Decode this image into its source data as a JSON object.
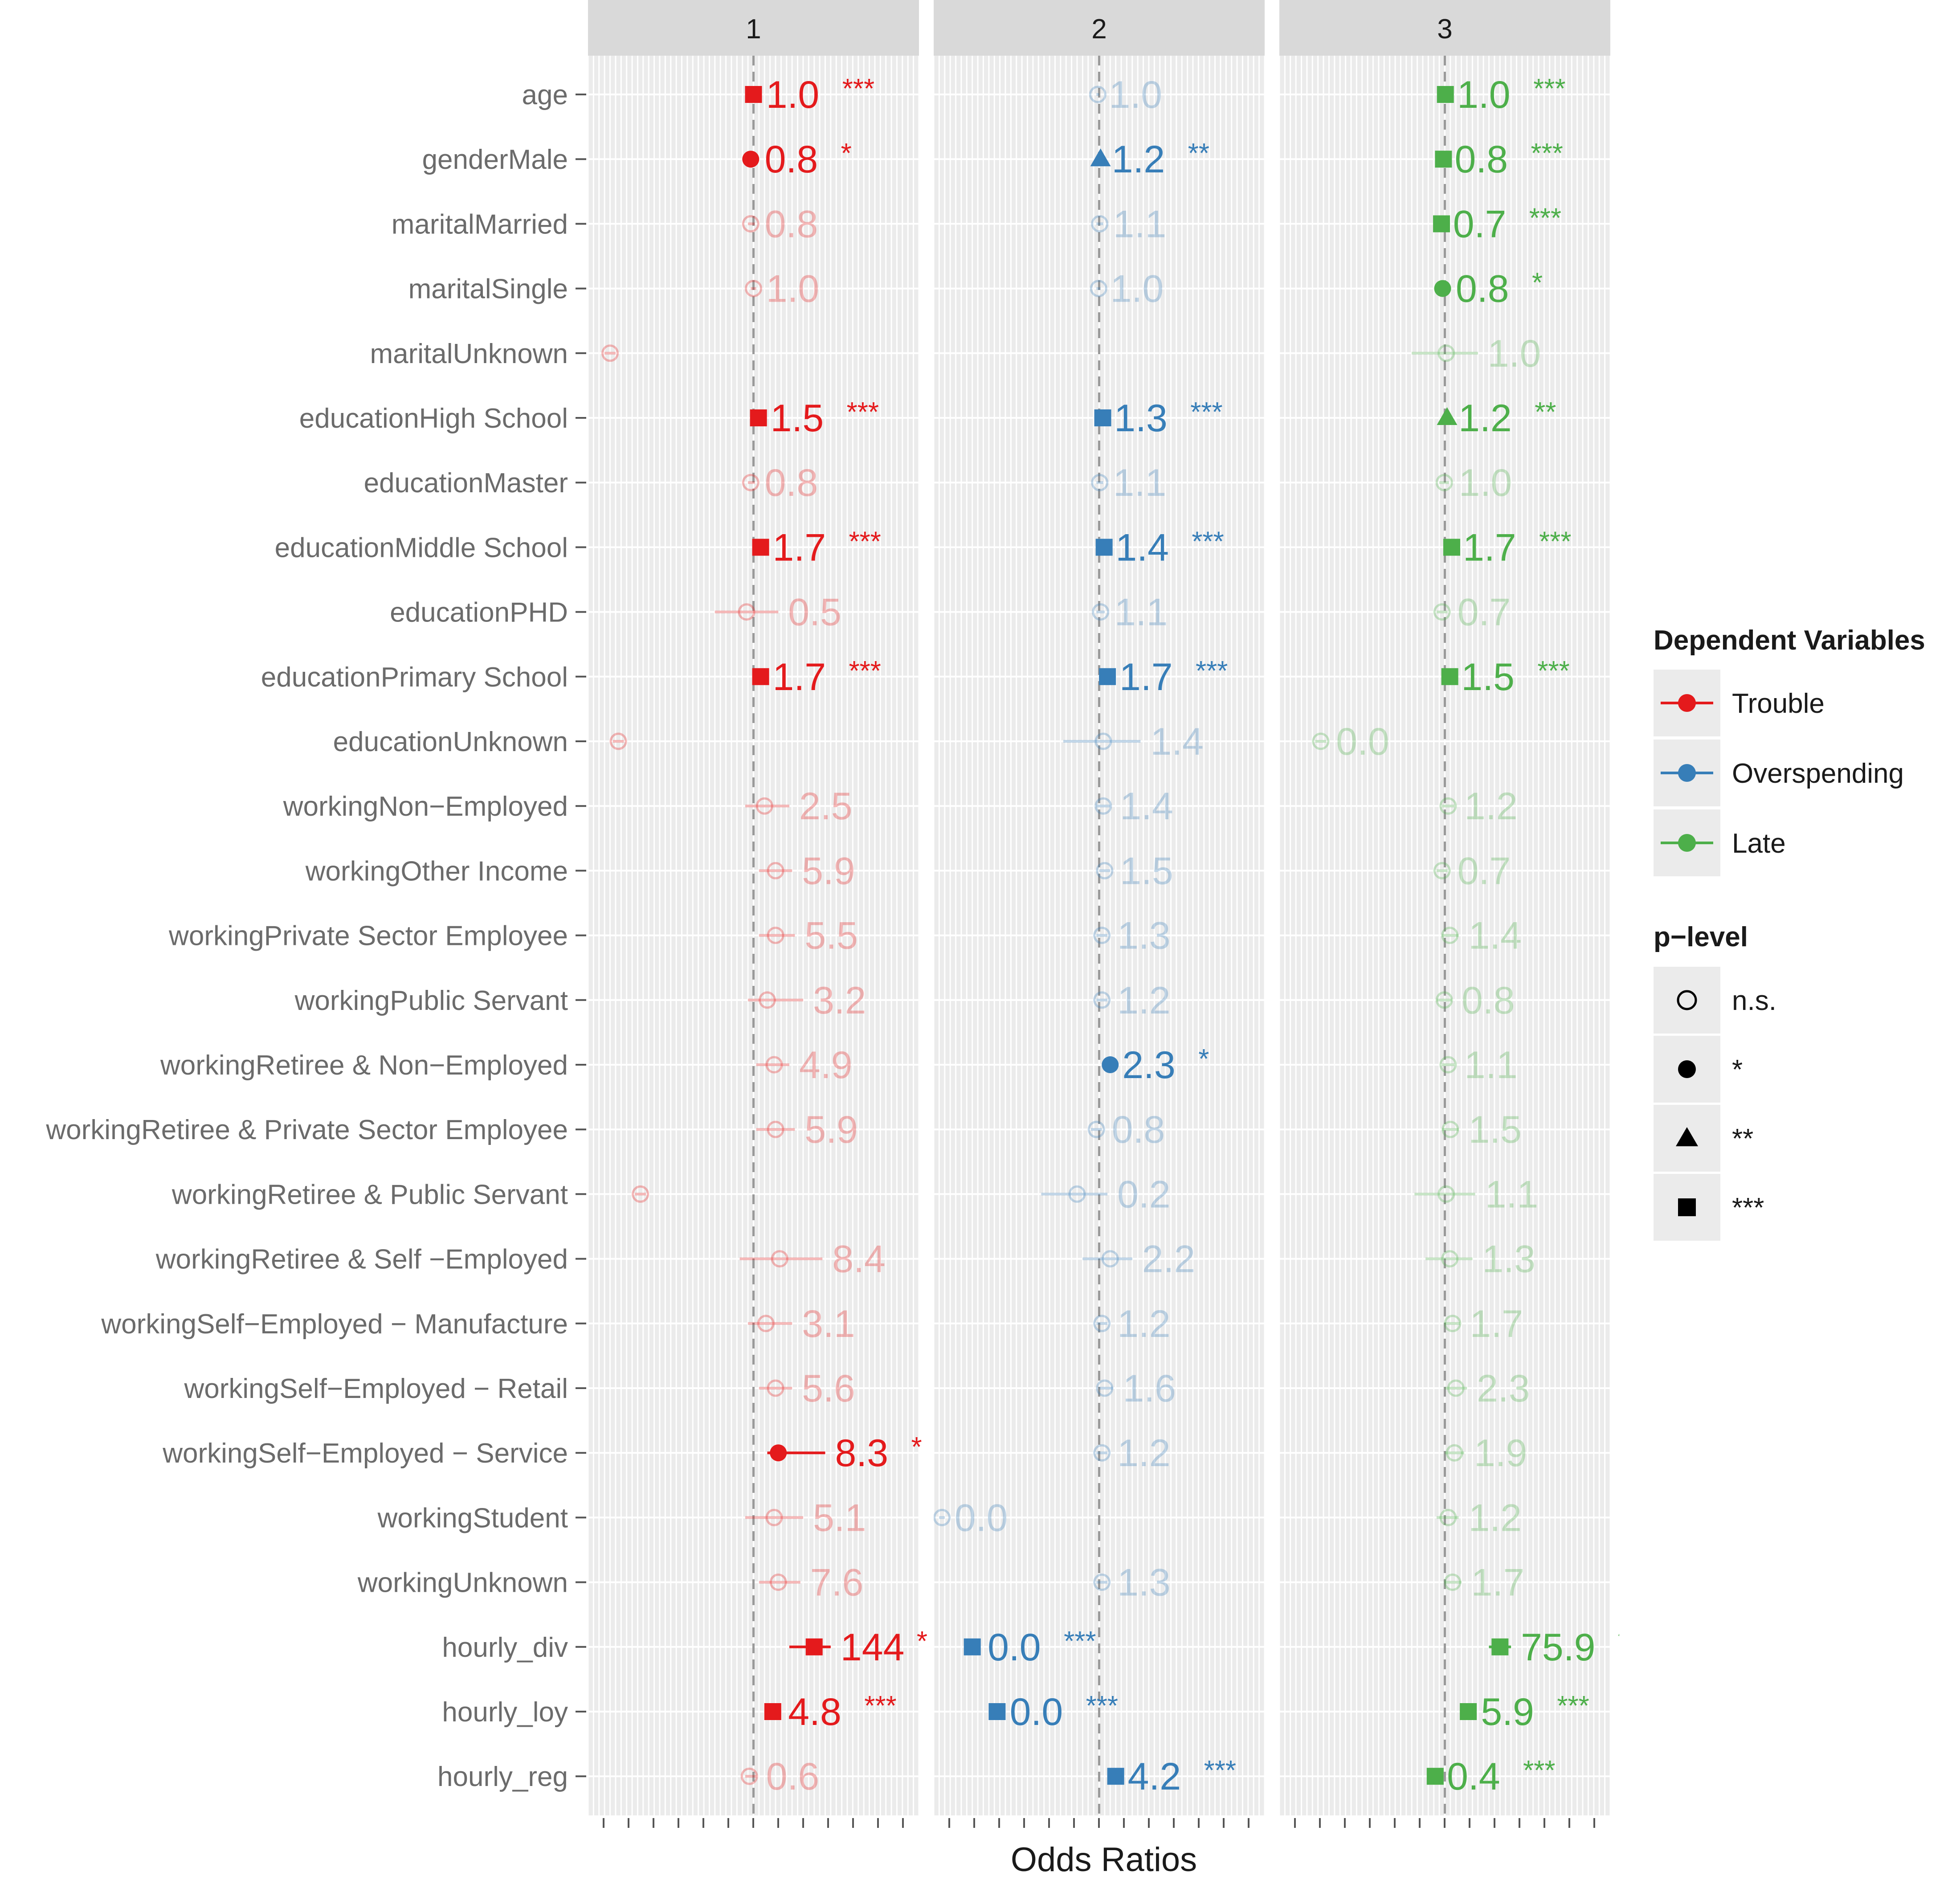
{
  "chart_data": {
    "type": "scatter",
    "title": "",
    "xlabel": "Odds Ratios",
    "ylabel": "",
    "facets": [
      "1",
      "2",
      "3"
    ],
    "colors": [
      "#E41A1C",
      "#377EB8",
      "#4DAF4A"
    ],
    "log_scale": true,
    "xlim": [
      -6,
      6
    ],
    "grid": true,
    "legend_position": "right",
    "categories": [
      "age",
      "genderMale",
      "maritalMarried",
      "maritalSingle",
      "maritalUnknown",
      "educationHigh School",
      "educationMaster",
      "educationMiddle School",
      "educationPHD",
      "educationPrimary School",
      "educationUnknown",
      "workingNon−Employed",
      "workingOther Income",
      "workingPrivate Sector Employee",
      "workingPublic Servant",
      "workingRetiree & Non−Employed",
      "workingRetiree & Private Sector Employee",
      "workingRetiree & Public Servant",
      "workingRetiree & Self −Employed",
      "workingSelf−Employed − Manufacture",
      "workingSelf−Employed − Retail",
      "workingSelf−Employed − Service",
      "workingStudent",
      "workingUnknown",
      "hourly_div",
      "hourly_loy",
      "hourly_reg"
    ],
    "series": [
      {
        "name": "Trouble",
        "x": [
          0.0,
          -0.1,
          -0.1,
          0.0,
          -5.2,
          0.18,
          -0.1,
          0.26,
          -0.25,
          0.26,
          -4.9,
          0.4,
          0.8,
          0.8,
          0.5,
          0.75,
          0.8,
          -4.1,
          0.95,
          0.45,
          0.8,
          0.9,
          0.75,
          0.9,
          2.2,
          0.7,
          -0.15
        ],
        "lo": [
          -0.1,
          -0.2,
          -0.2,
          -0.1,
          -5.4,
          0.1,
          -0.2,
          0.18,
          -1.4,
          0.18,
          -5.1,
          -0.3,
          0.2,
          0.2,
          -0.2,
          0.1,
          0.1,
          -4.3,
          -0.5,
          -0.2,
          0.2,
          0.5,
          -0.3,
          0.2,
          1.3,
          0.5,
          -0.3
        ],
        "hi": [
          0.1,
          0.05,
          0.05,
          0.1,
          -5.0,
          0.26,
          0.05,
          0.34,
          0.9,
          0.34,
          -4.7,
          1.3,
          1.4,
          1.5,
          1.8,
          1.3,
          1.5,
          -3.9,
          2.5,
          1.4,
          1.4,
          2.6,
          1.8,
          1.7,
          2.8,
          0.9,
          0.1
        ],
        "labels": [
          "1.0",
          "0.8",
          "0.8",
          "1.0",
          "",
          "1.5",
          "0.8",
          "1.7",
          "0.5",
          "1.7",
          "",
          "2.5",
          "5.9",
          "5.5",
          "3.2",
          "4.9",
          "5.9",
          "",
          "8.4",
          "3.1",
          "5.6",
          "8.3",
          "5.1",
          "7.6",
          "144",
          "4.8",
          "0.6"
        ],
        "p": [
          "***",
          "*",
          "n.s.",
          "n.s.",
          "n.s.",
          "***",
          "n.s.",
          "***",
          "n.s.",
          "***",
          "n.s.",
          "n.s.",
          "n.s.",
          "n.s.",
          "n.s.",
          "n.s.",
          "n.s.",
          "n.s.",
          "n.s.",
          "n.s.",
          "n.s.",
          "*",
          "n.s.",
          "n.s.",
          "***",
          "***",
          "n.s."
        ]
      },
      {
        "name": "Overspending",
        "x": [
          -0.05,
          0.05,
          0.02,
          -0.02,
          null,
          0.13,
          0.02,
          0.18,
          0.05,
          0.3,
          0.15,
          0.15,
          0.2,
          0.1,
          0.1,
          0.4,
          -0.1,
          -0.8,
          0.4,
          0.1,
          0.2,
          0.1,
          -5.7,
          0.1,
          -4.6,
          -3.7,
          0.6
        ],
        "lo": [
          -0.1,
          0.0,
          -0.1,
          -0.1,
          null,
          0.07,
          -0.1,
          0.12,
          -0.1,
          0.22,
          -1.3,
          -0.1,
          0.0,
          -0.1,
          -0.1,
          0.32,
          -0.3,
          -2.1,
          -0.6,
          -0.1,
          0.0,
          -0.1,
          -5.8,
          -0.1,
          -4.8,
          -3.8,
          0.52
        ],
        "hi": [
          0.0,
          0.1,
          0.15,
          0.05,
          null,
          0.19,
          0.15,
          0.24,
          0.2,
          0.38,
          1.5,
          0.4,
          0.4,
          0.3,
          0.3,
          0.48,
          0.1,
          0.3,
          1.2,
          0.3,
          0.5,
          0.3,
          -5.6,
          0.3,
          -4.4,
          -3.6,
          0.68
        ],
        "labels": [
          "1.0",
          "1.2",
          "1.1",
          "1.0",
          "",
          "1.3",
          "1.1",
          "1.4",
          "1.1",
          "1.7",
          "1.4",
          "1.4",
          "1.5",
          "1.3",
          "1.2",
          "2.3",
          "0.8",
          "0.2",
          "2.2",
          "1.2",
          "1.6",
          "1.2",
          "0.0",
          "1.3",
          "0.0",
          "0.0",
          "4.2"
        ],
        "p": [
          "n.s.",
          "**",
          "n.s.",
          "n.s.",
          "n.s.",
          "***",
          "n.s.",
          "***",
          "n.s.",
          "***",
          "n.s.",
          "n.s.",
          "n.s.",
          "n.s.",
          "n.s.",
          "*",
          "n.s.",
          "n.s.",
          "n.s.",
          "n.s.",
          "n.s.",
          "n.s.",
          "n.s.",
          "n.s.",
          "***",
          "***",
          "***"
        ]
      },
      {
        "name": "Late",
        "x": [
          0.02,
          -0.05,
          -0.12,
          -0.08,
          0.05,
          0.08,
          -0.02,
          0.25,
          -0.1,
          0.18,
          -4.5,
          0.12,
          -0.1,
          0.18,
          -0.02,
          0.12,
          0.2,
          0.05,
          0.18,
          0.28,
          0.4,
          0.35,
          0.12,
          0.28,
          2.0,
          0.85,
          -0.35
        ],
        "lo": [
          -0.05,
          -0.1,
          -0.18,
          -0.2,
          -1.2,
          0.02,
          -0.2,
          0.2,
          -0.3,
          0.12,
          -4.7,
          -0.1,
          -0.3,
          -0.1,
          -0.3,
          -0.1,
          -0.1,
          -1.1,
          -0.7,
          0.0,
          0.0,
          0.0,
          -0.3,
          0.0,
          1.6,
          0.75,
          -0.42
        ],
        "hi": [
          0.09,
          0.0,
          -0.06,
          0.04,
          1.2,
          0.14,
          0.15,
          0.3,
          0.1,
          0.24,
          -4.3,
          0.35,
          0.1,
          0.5,
          0.25,
          0.35,
          0.5,
          1.1,
          1.0,
          0.55,
          0.8,
          0.7,
          0.5,
          0.6,
          2.4,
          0.95,
          -0.28
        ],
        "labels": [
          "1.0",
          "0.8",
          "0.7",
          "0.8",
          "1.0",
          "1.2",
          "1.0",
          "1.7",
          "0.7",
          "1.5",
          "0.0",
          "1.2",
          "0.7",
          "1.4",
          "0.8",
          "1.1",
          "1.5",
          "1.1",
          "1.3",
          "1.7",
          "2.3",
          "1.9",
          "1.2",
          "1.7",
          "75.9",
          "5.9",
          "0.4"
        ],
        "p": [
          "***",
          "***",
          "***",
          "*",
          "n.s.",
          "**",
          "n.s.",
          "***",
          "n.s.",
          "***",
          "n.s.",
          "n.s.",
          "n.s.",
          "n.s.",
          "n.s.",
          "n.s.",
          "n.s.",
          "n.s.",
          "n.s.",
          "n.s.",
          "n.s.",
          "n.s.",
          "n.s.",
          "n.s.",
          "***",
          "***",
          "***"
        ]
      }
    ],
    "legend": {
      "color_title": "Dependent Variables",
      "color_items": [
        "Trouble",
        "Overspending",
        "Late"
      ],
      "shape_title": "p−level",
      "shape_items": [
        "n.s.",
        "*",
        "**",
        "***"
      ]
    }
  }
}
